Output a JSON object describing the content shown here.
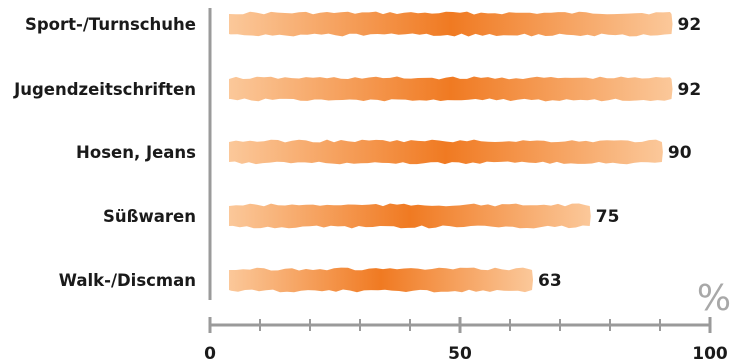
{
  "chart_data": {
    "type": "bar",
    "orientation": "horizontal",
    "categories": [
      "Sport-/Turnschuhe",
      "Jugendzeitschriften",
      "Hosen, Jeans",
      "Süßwaren",
      "Walk-/Discman"
    ],
    "values": [
      92,
      92,
      90,
      75,
      63
    ],
    "xlim": [
      0,
      100
    ],
    "x_ticks": [
      0,
      50,
      100
    ],
    "x_unit": "%",
    "grid": false,
    "legend": "none",
    "colors": {
      "bar_edge": "#fbc89a",
      "bar_center": "#f07a22",
      "axis": "#9a9a9a",
      "text": "#1a1a1a",
      "unit": "#a8a8a8"
    }
  }
}
